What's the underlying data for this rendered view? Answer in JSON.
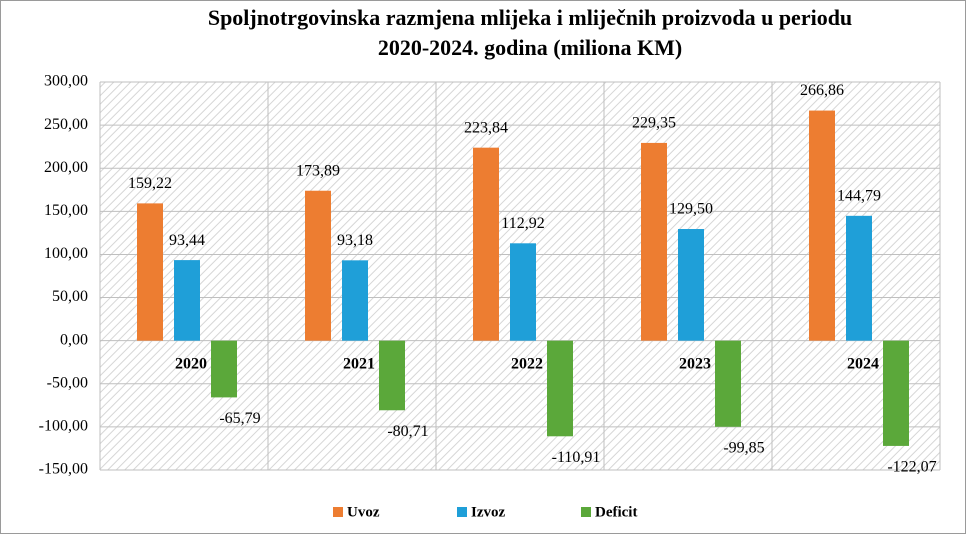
{
  "chart_data": {
    "type": "bar",
    "title": [
      "Spoljnotrgovinska razmjena mlijeka i mliječnih proizvoda  u periodu",
      "2020-2024. godina (miliona KM)"
    ],
    "categories": [
      "2020",
      "2021",
      "2022",
      "2023",
      "2024"
    ],
    "series": [
      {
        "name": "Uvoz",
        "color": "#ED7D31",
        "values": [
          159.22,
          173.89,
          223.84,
          229.35,
          266.86
        ],
        "value_labels": [
          "159,22",
          "173,89",
          "223,84",
          "229,35",
          "266,86"
        ]
      },
      {
        "name": "Izvoz",
        "color": "#1F9FD8",
        "values": [
          93.44,
          93.18,
          112.92,
          129.5,
          144.79
        ],
        "value_labels": [
          "93,44",
          "93,18",
          "112,92",
          "129,50",
          "144,79"
        ]
      },
      {
        "name": "Deficit",
        "color": "#5BA83A",
        "values": [
          -65.79,
          -80.71,
          -110.91,
          -99.85,
          -122.07
        ],
        "value_labels": [
          "-65,79",
          "-80,71",
          "-110,91",
          "-99,85",
          "-122,07"
        ]
      }
    ],
    "ylim": [
      -150,
      300
    ],
    "yticks": [
      {
        "value": -150,
        "label": "-150,00"
      },
      {
        "value": -100,
        "label": "-100,00"
      },
      {
        "value": -50,
        "label": "-50,00"
      },
      {
        "value": 0,
        "label": "0,00"
      },
      {
        "value": 50,
        "label": "50,00"
      },
      {
        "value": 100,
        "label": "100,00"
      },
      {
        "value": 150,
        "label": "150,00"
      },
      {
        "value": 200,
        "label": "200,00"
      },
      {
        "value": 250,
        "label": "250,00"
      },
      {
        "value": 300,
        "label": "300,00"
      }
    ],
    "grid": true,
    "legend": "bottom"
  }
}
